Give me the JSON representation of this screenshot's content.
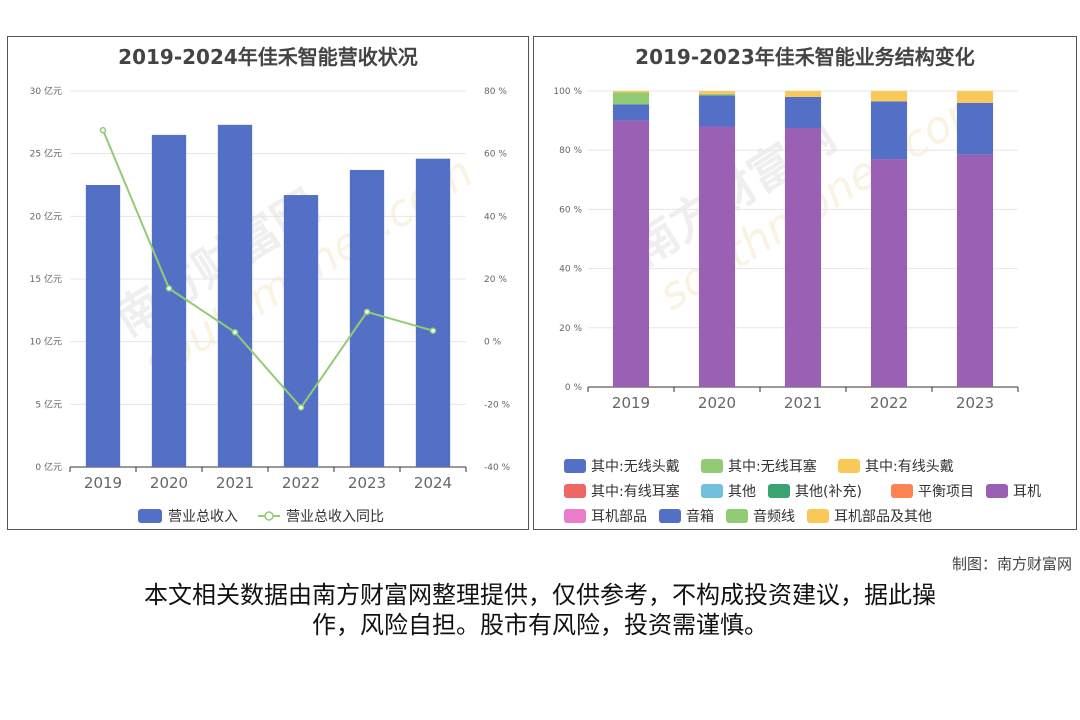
{
  "charts": [
    {
      "title": "2019-2024年佳禾智能营收状况",
      "chart_data": {
        "type": "bar",
        "categories": [
          "2019",
          "2020",
          "2021",
          "2022",
          "2023",
          "2024"
        ],
        "series": [
          {
            "name": "营业总收入",
            "type": "bar",
            "axis": "left",
            "values": [
              22.5,
              26.5,
              27.3,
              21.7,
              23.7,
              24.6
            ],
            "color": "#5470c6"
          },
          {
            "name": "营业总收入同比",
            "type": "line",
            "axis": "right",
            "values": [
              67.5,
              17,
              3,
              -21,
              9.5,
              3.5
            ],
            "color": "#91cc75"
          }
        ],
        "y_left": {
          "range": [
            0,
            30
          ],
          "ticks": [
            "0 亿元",
            "5 亿元",
            "10 亿元",
            "15 亿元",
            "20 亿元",
            "25 亿元",
            "30 亿元"
          ]
        },
        "y_right": {
          "range": [
            -40,
            80
          ],
          "ticks": [
            "-40 %",
            "-20 %",
            "0 %",
            "20 %",
            "40 %",
            "60 %",
            "80 %"
          ]
        },
        "grid": true,
        "legend": "bottom"
      }
    },
    {
      "title": "2019-2023年佳禾智能业务结构变化",
      "chart_data": {
        "type": "bar",
        "stacked": true,
        "categories": [
          "2019",
          "2020",
          "2021",
          "2022",
          "2023"
        ],
        "series": [
          {
            "name": "其中:无线头戴",
            "values": [
              0,
              0,
              0,
              0,
              0
            ],
            "color": "#5470c6"
          },
          {
            "name": "其中:无线耳塞",
            "values": [
              0,
              0,
              0,
              0,
              0
            ],
            "color": "#91cc75"
          },
          {
            "name": "其中:有线头戴",
            "values": [
              0,
              0,
              0,
              0,
              0
            ],
            "color": "#fac858"
          },
          {
            "name": "其中:有线耳塞",
            "values": [
              0,
              0,
              0,
              0,
              0
            ],
            "color": "#ee6666"
          },
          {
            "name": "其他",
            "values": [
              0,
              0,
              0,
              0,
              0
            ],
            "color": "#73c0de"
          },
          {
            "name": "其他(补充)",
            "values": [
              0,
              0,
              0,
              0,
              0
            ],
            "color": "#3ba272"
          },
          {
            "name": "平衡项目",
            "values": [
              0,
              0,
              0,
              0,
              0
            ],
            "color": "#fc8452"
          },
          {
            "name": "耳机",
            "values": [
              90,
              88,
              87.5,
              77,
              78.5
            ],
            "color": "#9a60b4"
          },
          {
            "name": "耳机部品",
            "values": [
              0,
              0,
              0,
              0,
              0
            ],
            "color": "#ea7ccc"
          },
          {
            "name": "音箱",
            "values": [
              5.5,
              10.5,
              10.5,
              19.5,
              17.5
            ],
            "color": "#5470c6"
          },
          {
            "name": "音频线",
            "values": [
              4,
              0.5,
              0,
              0,
              0
            ],
            "color": "#91cc75"
          },
          {
            "name": "耳机部品及其他",
            "values": [
              0.5,
              1,
              2,
              3.5,
              4
            ],
            "color": "#fac858"
          }
        ],
        "y": {
          "range": [
            0,
            100
          ],
          "ticks": [
            "0 %",
            "20 %",
            "40 %",
            "60 %",
            "80 %",
            "100 %"
          ]
        },
        "grid": true,
        "legend": "bottom"
      }
    }
  ],
  "watermark": {
    "brand": "南方财富网",
    "url": "southmoney.com"
  },
  "credit": "制图：南方财富网",
  "disclaimer": [
    "本文相关数据由南方财富网整理提供，仅供参考，不构成投资建议，据此操",
    "作，风险自担。股市有风险，投资需谨慎。"
  ]
}
